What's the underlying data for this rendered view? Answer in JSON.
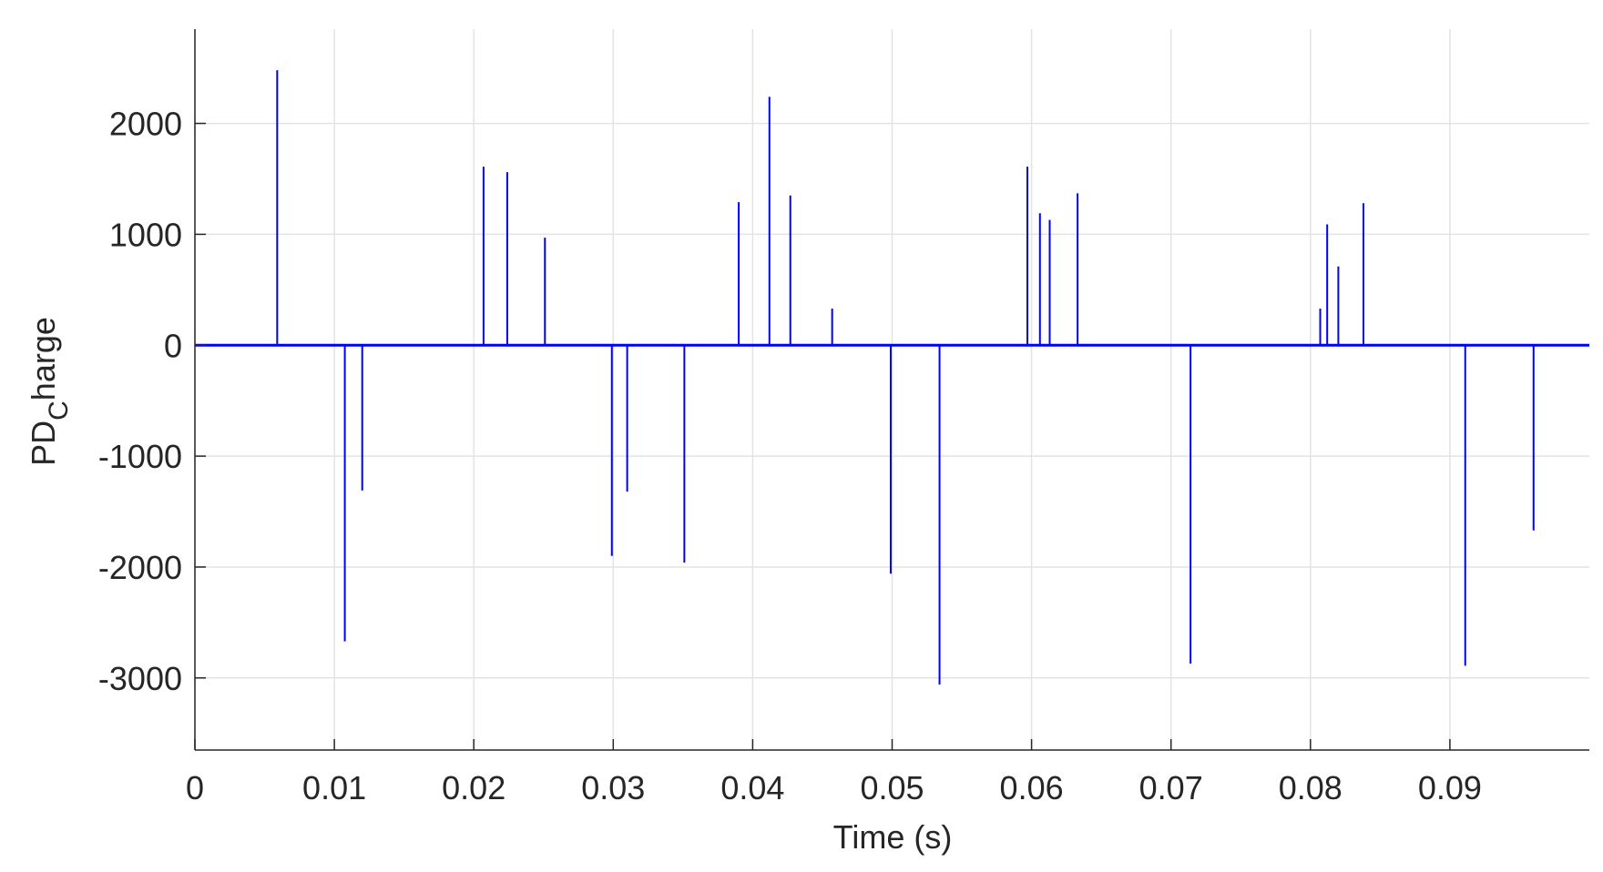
{
  "chart_data": {
    "type": "stem",
    "xlabel": "Time (s)",
    "ylabel": [
      "PD",
      "C",
      "harge"
    ],
    "x": [
      0.0059,
      0.01075,
      0.012,
      0.0207,
      0.0224,
      0.0251,
      0.0299,
      0.031,
      0.0351,
      0.039,
      0.0412,
      0.0427,
      0.0457,
      0.0499,
      0.0534,
      0.0597,
      0.0606,
      0.0613,
      0.0633,
      0.0714,
      0.0807,
      0.0812,
      0.082,
      0.0838,
      0.0911,
      0.096
    ],
    "values": [
      2480,
      -2670,
      -1310,
      1610,
      1560,
      970,
      -1900,
      -1320,
      -1960,
      1290,
      2240,
      1350,
      330,
      -2060,
      -3060,
      1610,
      1190,
      1130,
      1370,
      -2870,
      330,
      1090,
      710,
      1280,
      -2890,
      -1670
    ],
    "color": "#0000ff",
    "xlim": [
      0,
      0.1
    ],
    "ylim": [
      -3650,
      2850
    ],
    "xticks": [
      0,
      0.01,
      0.02,
      0.03,
      0.04,
      0.05,
      0.06,
      0.07,
      0.08,
      0.09
    ],
    "yticks": [
      -3000,
      -2000,
      -1000,
      0,
      1000,
      2000
    ],
    "grid": true
  }
}
